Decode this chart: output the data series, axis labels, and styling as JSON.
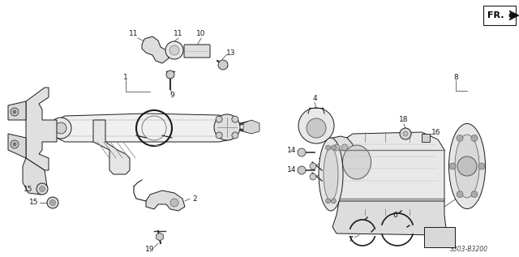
{
  "background_color": "#ffffff",
  "fig_width": 6.4,
  "fig_height": 3.17,
  "dpi": 100,
  "diagram_note": "S303-B3200",
  "text_color": "#1a1a1a",
  "label_fontsize": 6.5,
  "note_fontsize": 5.5
}
